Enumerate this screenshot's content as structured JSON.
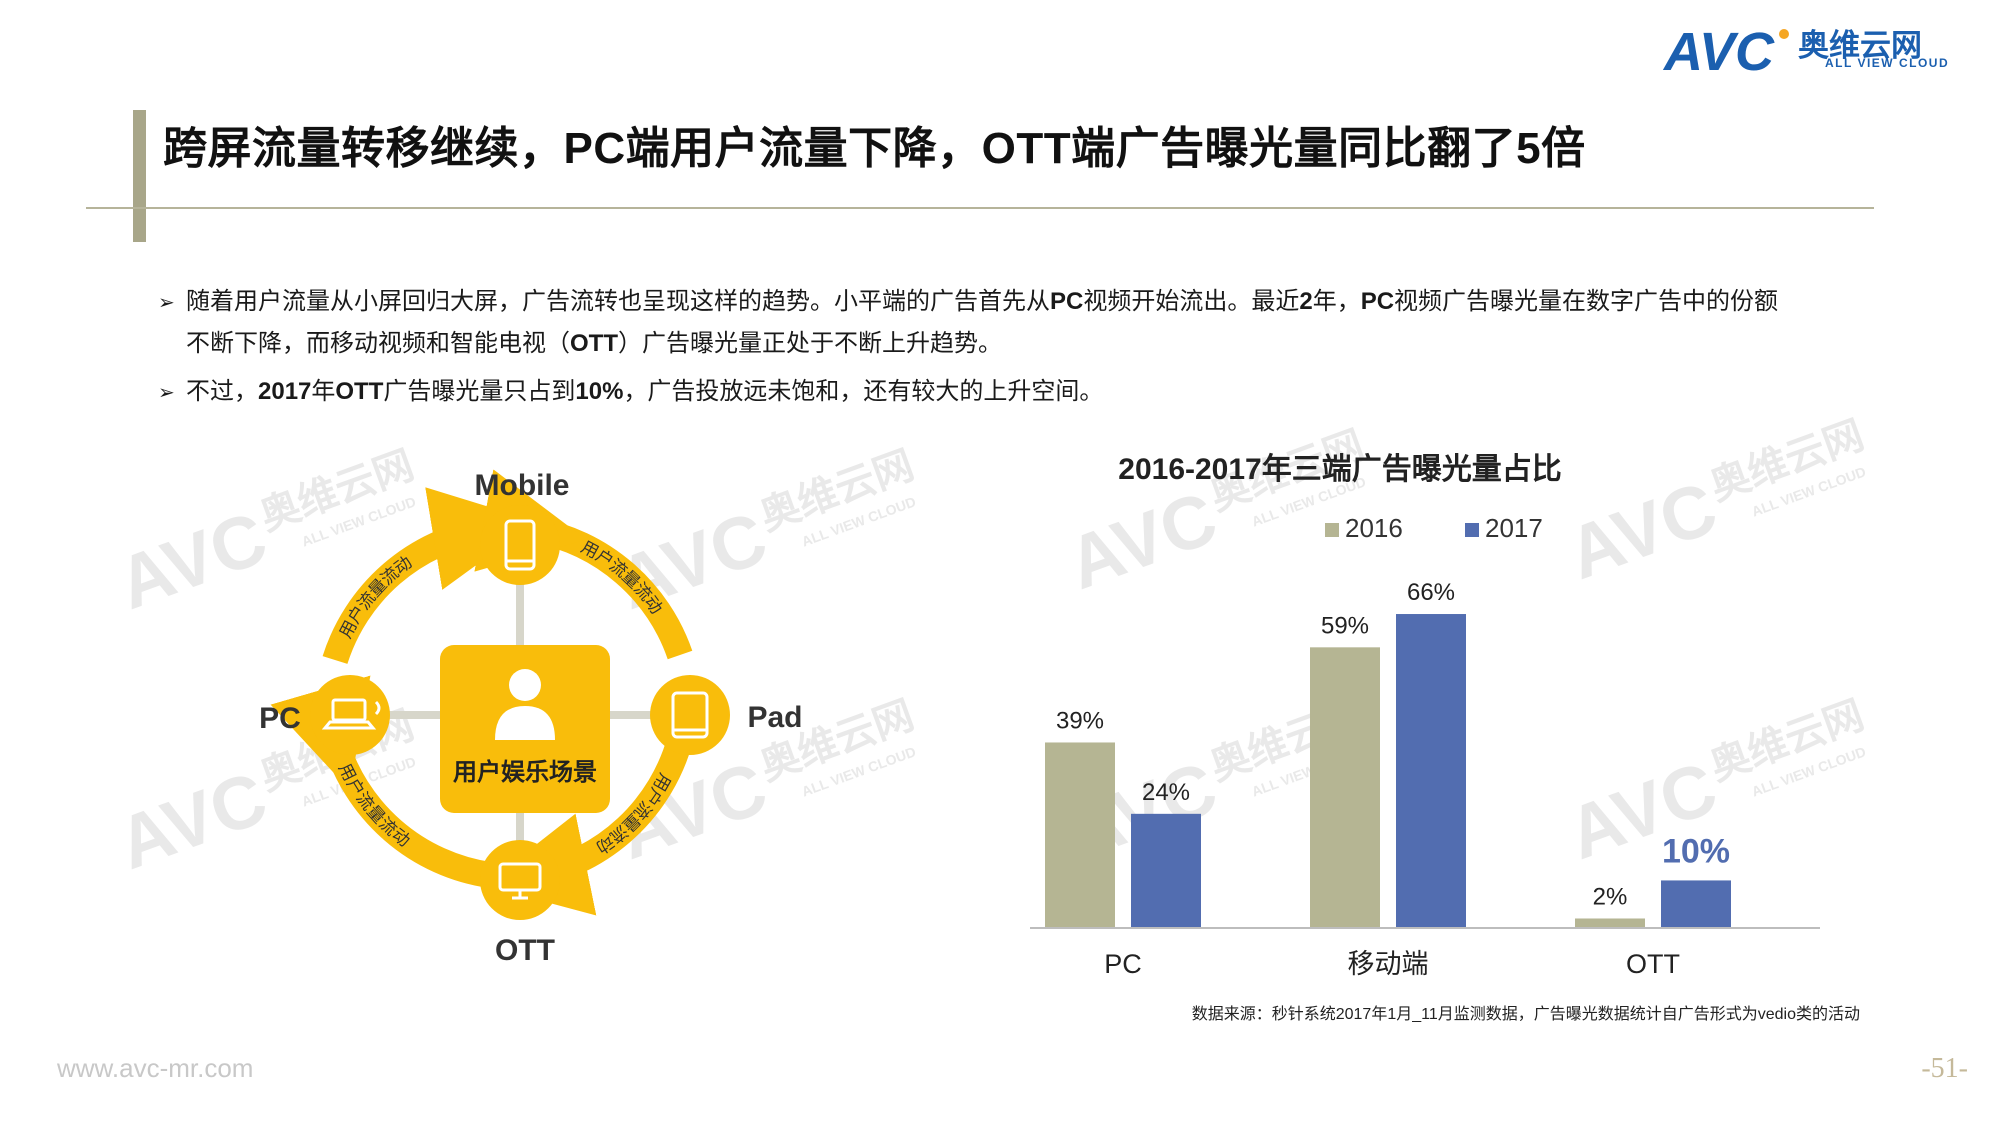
{
  "brand": {
    "cn": "奥维云网",
    "en": "ALL VIEW CLOUD",
    "mark": "AVC",
    "color": "#1b5faf"
  },
  "title": "跨屏流量转移继续，PC端用户流量下降，OTT端广告曝光量同比翻了5倍",
  "bullets": {
    "b1_part1": "随着用户流量从小屏回归大屏，广告流转也呈现这样的趋势。小平端的广告首先从",
    "b1_pc1": "PC",
    "b1_part2": "视频开始流出。最近",
    "b1_2": "2",
    "b1_part3": "年，",
    "b1_pc2": "PC",
    "b1_part4": "视频广告曝光量在数字广告中的份额",
    "b1_line2_a": "不断下降，而移动视频和智能电视（",
    "b1_ott": "OTT",
    "b1_line2_b": "）广告曝光量正处于不断上升趋势。",
    "b2_part1": "不过，",
    "b2_year": "2017",
    "b2_part2": "年",
    "b2_ott": "OTT",
    "b2_part3": "广告曝光量只占到",
    "b2_pct": "10%",
    "b2_part4": "，广告投放远未饱和，还有较大的上升空间。"
  },
  "diagram": {
    "center": "用户娱乐场景",
    "nodes": {
      "mobile": "Mobile",
      "pc": "PC",
      "pad": "Pad",
      "ott": "OTT"
    },
    "flow_label": "用户流量流动",
    "accent": "#f9bd0b"
  },
  "chart_data": {
    "type": "bar",
    "title": "2016-2017年三端广告曝光量占比",
    "categories": [
      "PC",
      "移动端",
      "OTT"
    ],
    "series": [
      {
        "name": "2016",
        "values": [
          39,
          59,
          2
        ],
        "labels": [
          "39%",
          "59%",
          "2%"
        ],
        "color": "#b5b593"
      },
      {
        "name": "2017",
        "values": [
          24,
          66,
          10
        ],
        "labels": [
          "24%",
          "66%",
          "10%"
        ],
        "color": "#526db0"
      }
    ],
    "ylim": [
      0,
      70
    ],
    "grid": false,
    "legend": "top",
    "source": "数据来源：秒针系统2017年1月_11月监测数据，广告曝光数据统计自广告形式为vedio类的活动"
  },
  "footer": {
    "url": "www.avc-mr.com",
    "page": "-51-"
  }
}
